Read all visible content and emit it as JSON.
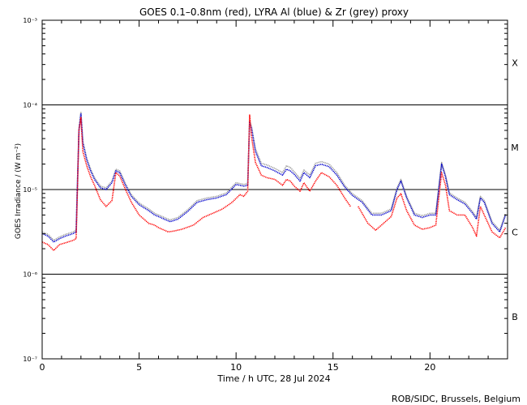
{
  "chart_data": {
    "type": "line",
    "title": "GOES 0.1–0.8nm (red), LYRA Al (blue) & Zr (grey) proxy",
    "xlabel": "Time / h UTC, 28 Jul 2024",
    "ylabel": "GOES Irradiance / (W m⁻²)",
    "xlim": [
      0,
      24
    ],
    "ylim_log10": [
      -7,
      -3
    ],
    "y_scale": "log",
    "x_ticks": [
      0,
      5,
      10,
      15,
      20
    ],
    "x_tick_labels": [
      "0",
      "5",
      "10",
      "15",
      "20"
    ],
    "y_ticks_log10": [
      -7,
      -6,
      -5,
      -4,
      -3
    ],
    "y_tick_labels": [
      "10⁻⁷",
      "10⁻⁶",
      "10⁻⁵",
      "10⁻⁴",
      "10⁻³"
    ],
    "flare_class_lines_log10": [
      -6,
      -5,
      -4
    ],
    "flare_classes": [
      {
        "label": "B",
        "log10": -6.5
      },
      {
        "label": "C",
        "log10": -5.5
      },
      {
        "label": "M",
        "log10": -4.5
      },
      {
        "label": "X",
        "log10": -3.5
      }
    ],
    "credit": "ROB/SIDC, Brussels, Belgium",
    "series": [
      {
        "name": "GOES 0.1-0.8nm",
        "color": "#ff0000",
        "segments": [
          [
            [
              0,
              -5.62
            ],
            [
              0.3,
              -5.65
            ],
            [
              0.6,
              -5.72
            ],
            [
              0.9,
              -5.65
            ],
            [
              1.2,
              -5.63
            ],
            [
              1.6,
              -5.6
            ],
            [
              1.75,
              -5.58
            ],
            [
              1.8,
              -5.2
            ],
            [
              1.9,
              -4.3
            ],
            [
              2.0,
              -4.15
            ],
            [
              2.1,
              -4.55
            ],
            [
              2.3,
              -4.72
            ],
            [
              2.5,
              -4.85
            ],
            [
              2.7,
              -4.95
            ],
            [
              3.0,
              -5.12
            ],
            [
              3.3,
              -5.2
            ],
            [
              3.6,
              -5.13
            ],
            [
              3.8,
              -4.8
            ],
            [
              4.0,
              -4.84
            ],
            [
              4.3,
              -5.0
            ],
            [
              4.6,
              -5.15
            ],
            [
              5.0,
              -5.3
            ],
            [
              5.5,
              -5.4
            ],
            [
              5.8,
              -5.42
            ],
            [
              6.0,
              -5.45
            ],
            [
              6.3,
              -5.48
            ],
            [
              6.5,
              -5.5
            ],
            [
              6.8,
              -5.49
            ],
            [
              7.2,
              -5.47
            ],
            [
              7.8,
              -5.42
            ],
            [
              8.3,
              -5.33
            ],
            [
              8.8,
              -5.28
            ],
            [
              9.3,
              -5.23
            ],
            [
              9.8,
              -5.15
            ],
            [
              10.2,
              -5.06
            ],
            [
              10.4,
              -5.08
            ],
            [
              10.6,
              -5.02
            ],
            [
              10.7,
              -4.12
            ],
            [
              10.8,
              -4.38
            ],
            [
              11.0,
              -4.68
            ],
            [
              11.3,
              -4.83
            ],
            [
              11.6,
              -4.86
            ],
            [
              12.0,
              -4.88
            ],
            [
              12.4,
              -4.95
            ],
            [
              12.6,
              -4.88
            ],
            [
              12.8,
              -4.9
            ],
            [
              13.0,
              -4.96
            ],
            [
              13.3,
              -5.02
            ],
            [
              13.5,
              -4.92
            ],
            [
              13.8,
              -5.02
            ],
            [
              14.1,
              -4.9
            ],
            [
              14.4,
              -4.8
            ],
            [
              14.8,
              -4.85
            ],
            [
              15.2,
              -4.95
            ],
            [
              15.6,
              -5.1
            ],
            [
              15.9,
              -5.2
            ]
          ],
          [
            [
              16.3,
              -5.2
            ],
            [
              16.8,
              -5.4
            ],
            [
              17.2,
              -5.48
            ],
            [
              17.6,
              -5.4
            ],
            [
              18.0,
              -5.32
            ],
            [
              18.3,
              -5.1
            ],
            [
              18.5,
              -5.05
            ],
            [
              18.8,
              -5.25
            ],
            [
              19.2,
              -5.42
            ],
            [
              19.6,
              -5.47
            ],
            [
              20.0,
              -5.45
            ],
            [
              20.3,
              -5.42
            ],
            [
              20.6,
              -4.8
            ],
            [
              20.8,
              -4.95
            ],
            [
              21.0,
              -5.25
            ],
            [
              21.4,
              -5.3
            ],
            [
              21.8,
              -5.3
            ],
            [
              22.2,
              -5.45
            ],
            [
              22.4,
              -5.55
            ],
            [
              22.6,
              -5.2
            ],
            [
              22.8,
              -5.3
            ],
            [
              23.2,
              -5.5
            ],
            [
              23.6,
              -5.57
            ],
            [
              23.9,
              -5.45
            ]
          ]
        ]
      },
      {
        "name": "LYRA Al proxy",
        "color": "#0000cc",
        "segments": [
          [
            [
              0,
              -5.52
            ],
            [
              0.3,
              -5.55
            ],
            [
              0.6,
              -5.62
            ],
            [
              0.9,
              -5.58
            ],
            [
              1.2,
              -5.55
            ],
            [
              1.6,
              -5.52
            ],
            [
              1.75,
              -5.5
            ],
            [
              1.8,
              -5.1
            ],
            [
              1.9,
              -4.3
            ],
            [
              2.0,
              -4.1
            ],
            [
              2.1,
              -4.45
            ],
            [
              2.3,
              -4.65
            ],
            [
              2.5,
              -4.78
            ],
            [
              2.7,
              -4.88
            ],
            [
              3.0,
              -4.98
            ],
            [
              3.3,
              -5.0
            ],
            [
              3.6,
              -4.92
            ],
            [
              3.8,
              -4.78
            ],
            [
              4.0,
              -4.8
            ],
            [
              4.3,
              -4.95
            ],
            [
              4.6,
              -5.08
            ],
            [
              5.0,
              -5.18
            ],
            [
              5.5,
              -5.25
            ],
            [
              5.8,
              -5.3
            ],
            [
              6.0,
              -5.32
            ],
            [
              6.3,
              -5.35
            ],
            [
              6.6,
              -5.38
            ],
            [
              7.0,
              -5.35
            ],
            [
              7.5,
              -5.26
            ],
            [
              8.0,
              -5.15
            ],
            [
              8.5,
              -5.12
            ],
            [
              9.0,
              -5.1
            ],
            [
              9.5,
              -5.06
            ],
            [
              10.0,
              -4.94
            ],
            [
              10.4,
              -4.96
            ],
            [
              10.6,
              -4.95
            ],
            [
              10.7,
              -4.2
            ],
            [
              10.8,
              -4.28
            ],
            [
              11.0,
              -4.55
            ],
            [
              11.3,
              -4.72
            ],
            [
              11.6,
              -4.74
            ],
            [
              12.0,
              -4.78
            ],
            [
              12.4,
              -4.83
            ],
            [
              12.6,
              -4.76
            ],
            [
              12.8,
              -4.78
            ],
            [
              13.0,
              -4.82
            ],
            [
              13.3,
              -4.9
            ],
            [
              13.5,
              -4.8
            ],
            [
              13.8,
              -4.86
            ],
            [
              14.1,
              -4.72
            ],
            [
              14.4,
              -4.7
            ],
            [
              14.8,
              -4.73
            ],
            [
              15.2,
              -4.83
            ],
            [
              15.6,
              -4.97
            ],
            [
              16.0,
              -5.07
            ],
            [
              16.5,
              -5.15
            ],
            [
              17.0,
              -5.3
            ],
            [
              17.5,
              -5.3
            ],
            [
              18.0,
              -5.25
            ],
            [
              18.3,
              -5.0
            ],
            [
              18.5,
              -4.9
            ],
            [
              18.8,
              -5.1
            ],
            [
              19.2,
              -5.3
            ],
            [
              19.6,
              -5.33
            ],
            [
              20.0,
              -5.3
            ],
            [
              20.3,
              -5.3
            ],
            [
              20.6,
              -4.7
            ],
            [
              20.8,
              -4.85
            ],
            [
              21.0,
              -5.06
            ],
            [
              21.4,
              -5.12
            ],
            [
              21.8,
              -5.17
            ],
            [
              22.2,
              -5.28
            ],
            [
              22.4,
              -5.35
            ],
            [
              22.6,
              -5.1
            ],
            [
              22.8,
              -5.15
            ],
            [
              23.2,
              -5.4
            ],
            [
              23.6,
              -5.5
            ],
            [
              23.9,
              -5.3
            ]
          ]
        ]
      },
      {
        "name": "LYRA Zr proxy",
        "color": "#999999",
        "segments": [
          [
            [
              0,
              -5.5
            ],
            [
              0.3,
              -5.53
            ],
            [
              0.6,
              -5.6
            ],
            [
              0.9,
              -5.56
            ],
            [
              1.2,
              -5.53
            ],
            [
              1.6,
              -5.5
            ],
            [
              1.75,
              -5.48
            ],
            [
              1.8,
              -5.08
            ],
            [
              1.9,
              -4.28
            ],
            [
              2.0,
              -4.08
            ],
            [
              2.1,
              -4.43
            ],
            [
              2.3,
              -4.63
            ],
            [
              2.5,
              -4.76
            ],
            [
              2.7,
              -4.86
            ],
            [
              3.0,
              -4.96
            ],
            [
              3.3,
              -4.98
            ],
            [
              3.6,
              -4.9
            ],
            [
              3.8,
              -4.76
            ],
            [
              4.0,
              -4.78
            ],
            [
              4.3,
              -4.93
            ],
            [
              4.6,
              -5.06
            ],
            [
              5.0,
              -5.16
            ],
            [
              5.5,
              -5.23
            ],
            [
              5.8,
              -5.28
            ],
            [
              6.0,
              -5.3
            ],
            [
              6.3,
              -5.33
            ],
            [
              6.6,
              -5.36
            ],
            [
              7.0,
              -5.33
            ],
            [
              7.5,
              -5.24
            ],
            [
              8.0,
              -5.13
            ],
            [
              8.5,
              -5.1
            ],
            [
              9.0,
              -5.08
            ],
            [
              9.5,
              -5.04
            ],
            [
              10.0,
              -4.92
            ],
            [
              10.4,
              -4.94
            ],
            [
              10.6,
              -4.93
            ],
            [
              10.7,
              -4.18
            ],
            [
              10.8,
              -4.26
            ],
            [
              11.0,
              -4.52
            ],
            [
              11.3,
              -4.69
            ],
            [
              11.6,
              -4.71
            ],
            [
              12.0,
              -4.75
            ],
            [
              12.4,
              -4.8
            ],
            [
              12.6,
              -4.72
            ],
            [
              12.8,
              -4.74
            ],
            [
              13.0,
              -4.79
            ],
            [
              13.3,
              -4.87
            ],
            [
              13.5,
              -4.77
            ],
            [
              13.8,
              -4.83
            ],
            [
              14.1,
              -4.69
            ],
            [
              14.4,
              -4.67
            ],
            [
              14.8,
              -4.7
            ],
            [
              15.2,
              -4.8
            ],
            [
              15.6,
              -4.95
            ],
            [
              16.0,
              -5.05
            ],
            [
              16.5,
              -5.13
            ],
            [
              17.0,
              -5.28
            ],
            [
              17.5,
              -5.28
            ],
            [
              18.0,
              -5.23
            ],
            [
              18.3,
              -4.98
            ],
            [
              18.5,
              -4.88
            ],
            [
              18.8,
              -5.08
            ],
            [
              19.2,
              -5.28
            ],
            [
              19.6,
              -5.31
            ],
            [
              20.0,
              -5.28
            ],
            [
              20.3,
              -5.28
            ],
            [
              20.6,
              -4.68
            ],
            [
              20.8,
              -4.83
            ],
            [
              21.0,
              -5.04
            ],
            [
              21.4,
              -5.1
            ],
            [
              21.8,
              -5.15
            ],
            [
              22.2,
              -5.26
            ],
            [
              22.4,
              -5.33
            ],
            [
              22.6,
              -5.08
            ],
            [
              22.8,
              -5.13
            ],
            [
              23.2,
              -5.38
            ],
            [
              23.6,
              -5.48
            ],
            [
              23.9,
              -5.28
            ]
          ]
        ]
      }
    ]
  }
}
